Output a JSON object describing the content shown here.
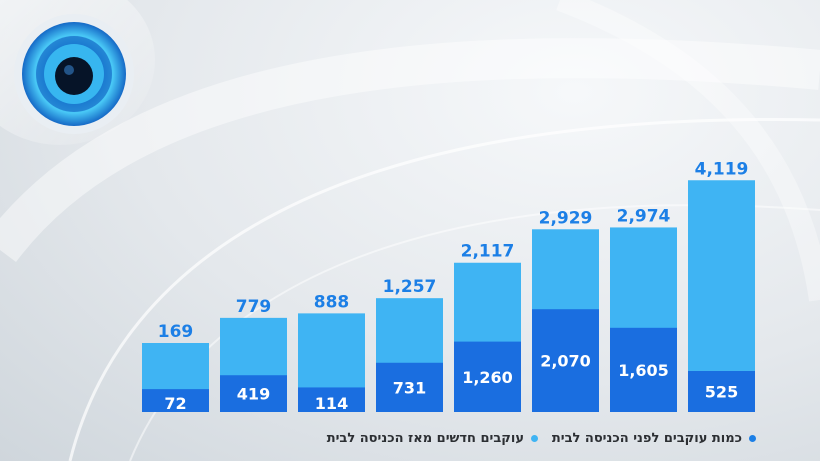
{
  "colors": {
    "total_bar": "#3fb4f3",
    "new_bar": "#1a6ee0",
    "value_text": "#1c7fe6",
    "inner_text": "#ffffff",
    "legend_dot_a": "#1c7fe6",
    "legend_dot_b": "#3fb4f3"
  },
  "chart_data": {
    "type": "bar",
    "categories": [
      "",
      "",
      "",
      "",
      "",
      "",
      "",
      ""
    ],
    "series": [
      {
        "name": "כמות עוקבים לפני הכניסה לבית",
        "values": [
          169,
          779,
          888,
          1257,
          2117,
          2929,
          2974,
          4119
        ]
      },
      {
        "name": "עוקבים חדשים מאז הכניסה לבית",
        "values": [
          72,
          419,
          114,
          731,
          1260,
          2070,
          1605,
          525
        ]
      }
    ],
    "total_labels": [
      "169",
      "779",
      "888",
      "1,257",
      "2,117",
      "2,929",
      "2,974",
      "4,119"
    ],
    "new_labels": [
      "72",
      "419",
      "114",
      "731",
      "1,260",
      "2,070",
      "1,605",
      "525"
    ],
    "title": "",
    "xlabel": "",
    "ylabel": "",
    "grid": false,
    "legend_position": "bottom"
  },
  "legend": {
    "item_a": "כמות עוקבים לפני הכניסה לבית",
    "item_b": "עוקבים חדשים מאז הכניסה לבית"
  }
}
